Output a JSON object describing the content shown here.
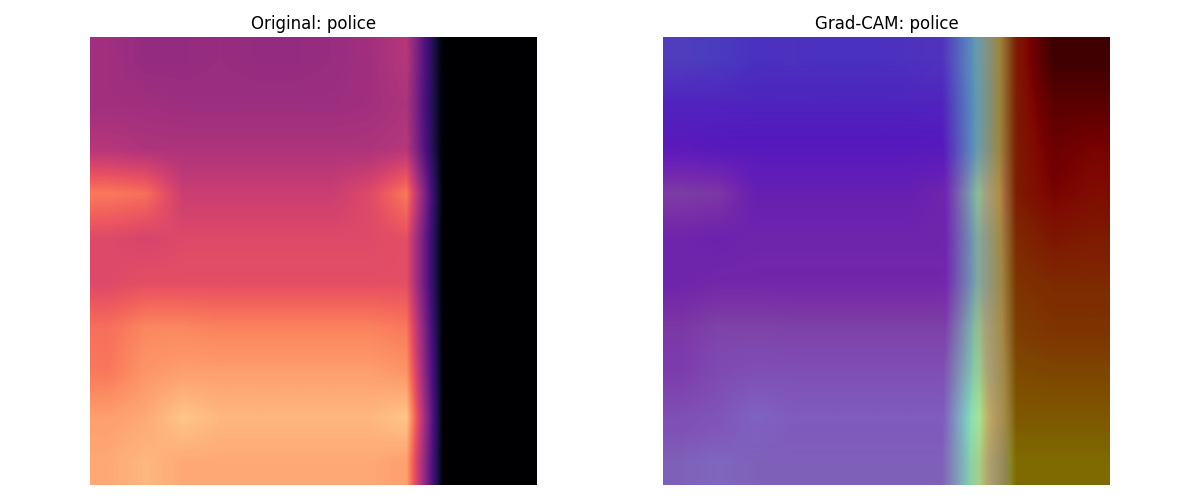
{
  "chart_data": [
    {
      "type": "heatmap",
      "title": "Original: police",
      "tick_labels": false,
      "value_range": [
        0,
        1
      ],
      "cells": [
        [
          0.45,
          0.42,
          0.42,
          0.43,
          0.42,
          0.42,
          0.43,
          0.45,
          0.5,
          0,
          0,
          0
        ],
        [
          0.45,
          0.45,
          0.44,
          0.44,
          0.44,
          0.44,
          0.44,
          0.45,
          0.48,
          0,
          0,
          0
        ],
        [
          0.5,
          0.48,
          0.48,
          0.48,
          0.48,
          0.48,
          0.48,
          0.48,
          0.5,
          0,
          0,
          0
        ],
        [
          0.72,
          0.7,
          0.55,
          0.55,
          0.55,
          0.55,
          0.55,
          0.6,
          0.72,
          0,
          0,
          0
        ],
        [
          0.6,
          0.58,
          0.6,
          0.6,
          0.6,
          0.6,
          0.6,
          0.6,
          0.62,
          0,
          0,
          0
        ],
        [
          0.6,
          0.62,
          0.62,
          0.62,
          0.62,
          0.62,
          0.62,
          0.62,
          0.62,
          0,
          0,
          0
        ],
        [
          0.7,
          0.75,
          0.75,
          0.74,
          0.74,
          0.74,
          0.74,
          0.74,
          0.72,
          0,
          0,
          0
        ],
        [
          0.72,
          0.78,
          0.8,
          0.8,
          0.8,
          0.8,
          0.8,
          0.8,
          0.78,
          0,
          0,
          0
        ],
        [
          0.8,
          0.82,
          0.88,
          0.85,
          0.85,
          0.85,
          0.85,
          0.85,
          0.88,
          0,
          0,
          0
        ],
        [
          0.82,
          0.85,
          0.82,
          0.82,
          0.82,
          0.82,
          0.82,
          0.82,
          0.8,
          0,
          0,
          0
        ]
      ]
    },
    {
      "type": "gradcam",
      "title": "Grad-CAM: police",
      "tick_labels": false,
      "value_range": [
        0,
        1
      ],
      "cells": [
        [
          0.2,
          0.2,
          0.18,
          0.18,
          0.18,
          0.18,
          0.18,
          0.18,
          0.4,
          0.85,
          1.0,
          1.0
        ],
        [
          0.15,
          0.15,
          0.15,
          0.15,
          0.15,
          0.15,
          0.15,
          0.15,
          0.4,
          0.85,
          0.95,
          0.95
        ],
        [
          0.12,
          0.12,
          0.12,
          0.12,
          0.12,
          0.12,
          0.12,
          0.12,
          0.4,
          0.85,
          0.92,
          0.9
        ],
        [
          0.1,
          0.1,
          0.1,
          0.1,
          0.1,
          0.1,
          0.1,
          0.1,
          0.4,
          0.85,
          0.9,
          0.88
        ],
        [
          0.1,
          0.1,
          0.1,
          0.1,
          0.1,
          0.1,
          0.1,
          0.1,
          0.4,
          0.82,
          0.86,
          0.85
        ],
        [
          0.1,
          0.1,
          0.1,
          0.1,
          0.1,
          0.1,
          0.1,
          0.1,
          0.4,
          0.8,
          0.82,
          0.82
        ],
        [
          0.1,
          0.1,
          0.1,
          0.1,
          0.1,
          0.1,
          0.1,
          0.1,
          0.42,
          0.78,
          0.8,
          0.8
        ],
        [
          0.12,
          0.12,
          0.12,
          0.12,
          0.12,
          0.12,
          0.12,
          0.12,
          0.42,
          0.75,
          0.76,
          0.76
        ],
        [
          0.12,
          0.12,
          0.12,
          0.12,
          0.12,
          0.12,
          0.12,
          0.12,
          0.45,
          0.72,
          0.72,
          0.72
        ],
        [
          0.15,
          0.15,
          0.15,
          0.15,
          0.15,
          0.15,
          0.15,
          0.15,
          0.45,
          0.68,
          0.68,
          0.68
        ]
      ]
    }
  ]
}
